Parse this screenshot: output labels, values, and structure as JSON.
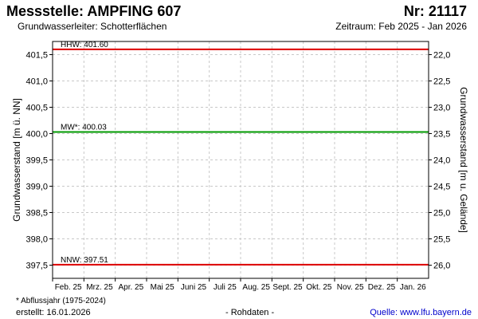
{
  "header": {
    "title": "Messstelle: AMPFING 607",
    "number": "Nr: 21117",
    "aquifer": "Grundwasserleiter:   Schotterflächen",
    "period": "Zeitraum: Feb 2025 - Jan 2026"
  },
  "footer": {
    "footnote": "* Abflussjahr (1975-2024)",
    "created": "erstellt:  16.01.2026",
    "raw_data": "- Rohdaten -",
    "source": "Quelle: www.lfu.bayern.de"
  },
  "colors": {
    "hhw_line": "#dd0000",
    "nnw_line": "#dd0000",
    "mw_line": "#009900",
    "grid": "#c8c8c8",
    "frame": "#000000"
  },
  "chart_data": {
    "type": "line",
    "ylabel": "Grundwasserstand [m ü. NN]",
    "ylabel_right": "Grundwasserstand [m u. Gelände]",
    "ylim": [
      397.25,
      401.75
    ],
    "yticks": [
      397.5,
      398.0,
      398.5,
      399.0,
      399.5,
      400.0,
      400.5,
      401.0,
      401.5
    ],
    "ytick_labels": [
      "397,5",
      "398,0",
      "398,5",
      "399,0",
      "399,5",
      "400,0",
      "400,5",
      "401,0",
      "401,5"
    ],
    "right_ylim": [
      26.25,
      21.75
    ],
    "right_yticks": [
      22.0,
      22.5,
      23.0,
      23.5,
      24.0,
      24.5,
      25.0,
      25.5,
      26.0
    ],
    "right_ytick_labels": [
      "22,0",
      "22,5",
      "23,0",
      "23,5",
      "24,0",
      "24,5",
      "25,0",
      "25,5",
      "26,0"
    ],
    "categories": [
      "Feb. 25",
      "Mrz. 25",
      "Apr. 25",
      "Mai 25",
      "Juni 25",
      "Juli 25",
      "Aug. 25",
      "Sept. 25",
      "Okt. 25",
      "Nov. 25",
      "Dez. 25",
      "Jan. 26"
    ],
    "grid": true,
    "reference_lines": [
      {
        "name": "HHW",
        "label": "HHW: 401.60",
        "value": 401.6,
        "color": "#dd0000"
      },
      {
        "name": "MW",
        "label": "MW*: 400.03",
        "value": 400.03,
        "color": "#009900"
      },
      {
        "name": "NNW",
        "label": "NNW: 397.51",
        "value": 397.51,
        "color": "#dd0000"
      }
    ]
  }
}
